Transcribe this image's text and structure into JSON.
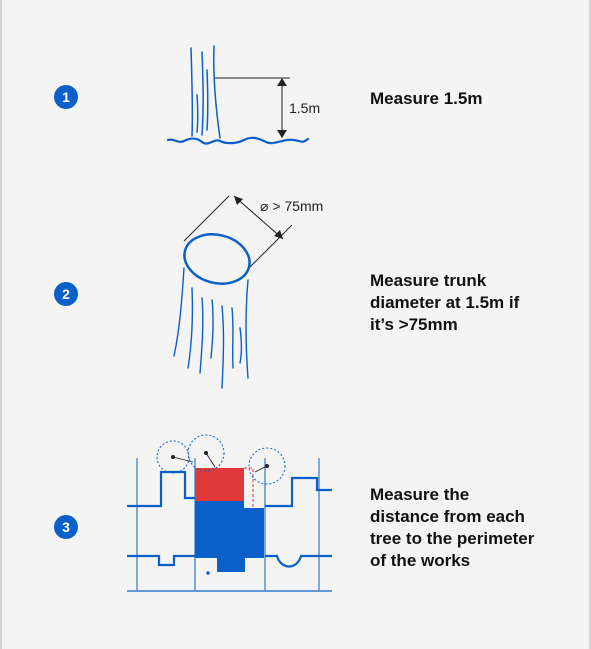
{
  "steps": [
    {
      "number": "1",
      "text_lines": [
        "Measure 1.5m"
      ],
      "figure_label": "1.5m"
    },
    {
      "number": "2",
      "text_lines": [
        "Measure trunk",
        "diameter at 1.5m if",
        "it’s >75mm"
      ],
      "figure_label": "⌀ > 75mm"
    },
    {
      "number": "3",
      "text_lines": [
        "Measure the",
        "distance from each",
        "tree to the perimeter",
        "of the works"
      ]
    }
  ],
  "colors": {
    "accent_blue": "#0a5fc8",
    "works_red": "#e0393a",
    "line_dark": "#222222"
  }
}
